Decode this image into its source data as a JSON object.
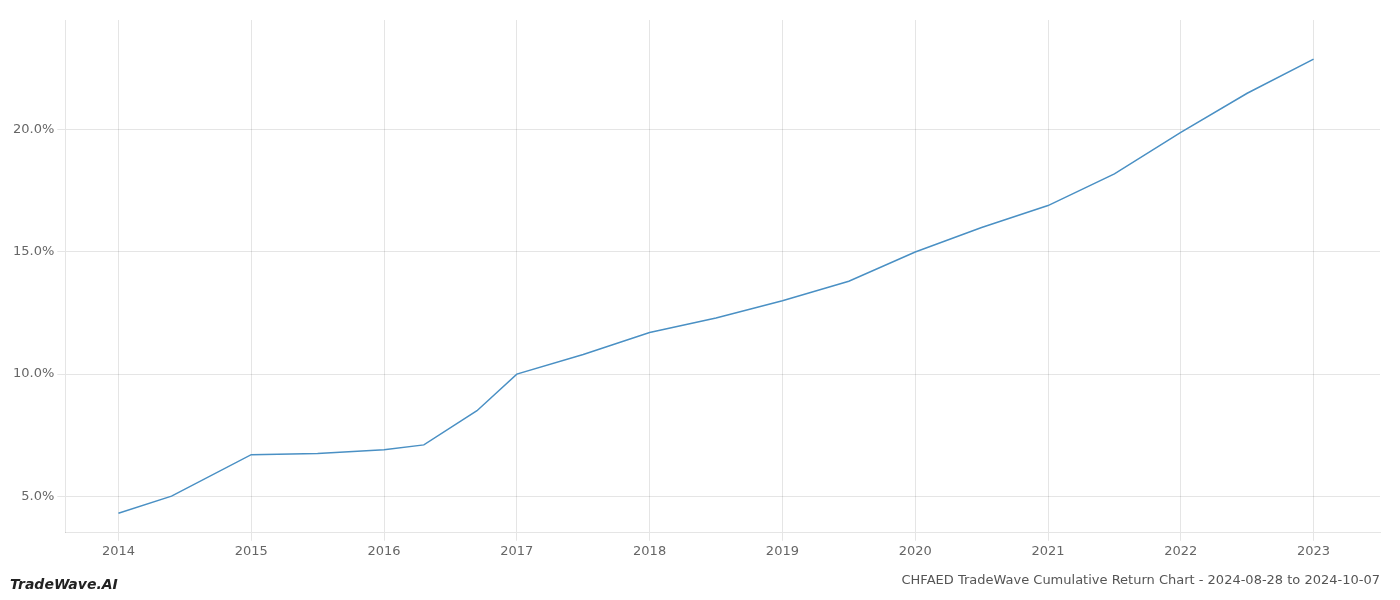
{
  "chart_data": {
    "type": "line",
    "title": "CHFAED TradeWave Cumulative Return Chart - 2024-08-28 to 2024-10-07",
    "annotations": [
      "TradeWave.AI"
    ],
    "x": [
      2014.0,
      2014.4,
      2015.0,
      2015.5,
      2016.0,
      2016.3,
      2016.7,
      2017.0,
      2017.5,
      2018.0,
      2018.5,
      2019.0,
      2019.5,
      2020.0,
      2020.5,
      2021.0,
      2021.5,
      2022.0,
      2022.5,
      2023.0
    ],
    "values": [
      4.3,
      5.0,
      6.7,
      6.75,
      6.9,
      7.1,
      8.5,
      10.0,
      10.8,
      11.7,
      12.3,
      13.0,
      13.8,
      15.0,
      16.0,
      16.9,
      18.2,
      19.9,
      21.5,
      22.9
    ],
    "color": "#4a90c4",
    "xlim": [
      2013.6,
      2023.5
    ],
    "xticks": [
      2014,
      2015,
      2016,
      2017,
      2018,
      2019,
      2020,
      2021,
      2022,
      2023
    ],
    "ylim": [
      3.5,
      24.5
    ],
    "yticks": [
      {
        "value": 5.0,
        "label": "5.0%"
      },
      {
        "value": 10.0,
        "label": "10.0%"
      },
      {
        "value": 15.0,
        "label": "15.0%"
      },
      {
        "value": 20.0,
        "label": "20.0%"
      }
    ],
    "grid": true
  }
}
